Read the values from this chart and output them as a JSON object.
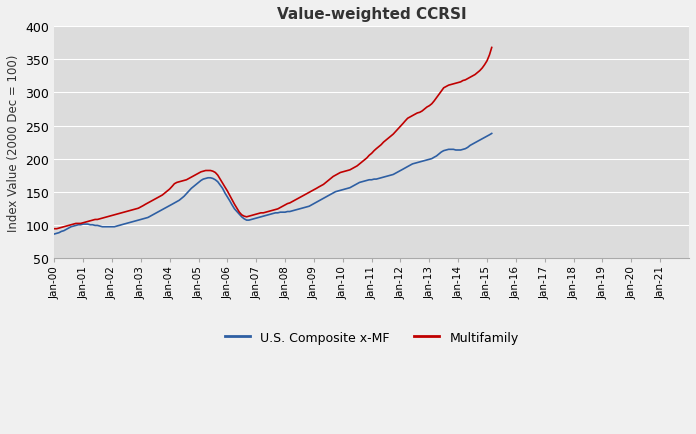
{
  "title": "Value-weighted CCRSI",
  "ylabel": "Index Value (2000 Dec = 100)",
  "ylim": [
    50,
    400
  ],
  "yticks": [
    50,
    100,
    150,
    200,
    250,
    300,
    350,
    400
  ],
  "line_color_composite": "#2E5FA3",
  "line_color_mf": "#C00000",
  "legend_composite": "U.S. Composite x-MF",
  "legend_mf": "Multifamily",
  "plot_bg_color": "#DCDCDC",
  "fig_bg_color": "#F0F0F0",
  "composite_values": [
    86,
    87,
    88,
    90,
    91,
    93,
    95,
    97,
    98,
    99,
    100,
    100,
    101,
    101,
    101,
    100,
    100,
    99,
    99,
    98,
    97,
    97,
    97,
    97,
    97,
    97,
    98,
    99,
    100,
    101,
    102,
    103,
    104,
    105,
    106,
    107,
    108,
    109,
    110,
    111,
    113,
    115,
    117,
    119,
    121,
    123,
    125,
    127,
    129,
    131,
    133,
    135,
    137,
    140,
    143,
    147,
    151,
    155,
    158,
    161,
    164,
    167,
    169,
    170,
    171,
    171,
    170,
    168,
    165,
    160,
    155,
    148,
    142,
    136,
    130,
    124,
    120,
    116,
    112,
    109,
    107,
    107,
    108,
    109,
    110,
    111,
    112,
    113,
    114,
    115,
    116,
    117,
    118,
    118,
    119,
    119,
    119,
    120,
    120,
    121,
    122,
    123,
    124,
    125,
    126,
    127,
    128,
    130,
    132,
    134,
    136,
    138,
    140,
    142,
    144,
    146,
    148,
    150,
    151,
    152,
    153,
    154,
    155,
    156,
    158,
    160,
    162,
    164,
    165,
    166,
    167,
    168,
    168,
    169,
    169,
    170,
    171,
    172,
    173,
    174,
    175,
    176,
    178,
    180,
    182,
    184,
    186,
    188,
    190,
    192,
    193,
    194,
    195,
    196,
    197,
    198,
    199,
    200,
    202,
    204,
    207,
    210,
    212,
    213,
    214,
    214,
    214,
    213,
    213,
    213,
    214,
    215,
    217,
    220,
    222,
    224,
    226,
    228,
    230,
    232,
    234,
    236,
    238
  ],
  "mf_values": [
    94,
    94,
    95,
    96,
    97,
    98,
    99,
    100,
    101,
    102,
    102,
    102,
    103,
    104,
    105,
    106,
    107,
    108,
    108,
    109,
    110,
    111,
    112,
    113,
    114,
    115,
    116,
    117,
    118,
    119,
    120,
    121,
    122,
    123,
    124,
    125,
    127,
    129,
    131,
    133,
    135,
    137,
    139,
    141,
    143,
    145,
    148,
    151,
    154,
    158,
    162,
    164,
    165,
    166,
    167,
    168,
    170,
    172,
    174,
    176,
    178,
    180,
    181,
    182,
    182,
    182,
    181,
    179,
    175,
    169,
    163,
    157,
    151,
    144,
    138,
    131,
    125,
    119,
    115,
    113,
    112,
    113,
    114,
    115,
    116,
    117,
    118,
    118,
    119,
    120,
    121,
    122,
    123,
    124,
    126,
    128,
    130,
    132,
    133,
    135,
    137,
    139,
    141,
    143,
    145,
    147,
    149,
    151,
    153,
    155,
    157,
    159,
    161,
    164,
    167,
    170,
    173,
    175,
    177,
    179,
    180,
    181,
    182,
    183,
    185,
    187,
    189,
    192,
    195,
    198,
    201,
    205,
    208,
    212,
    215,
    218,
    221,
    225,
    228,
    231,
    234,
    237,
    241,
    245,
    249,
    253,
    257,
    261,
    263,
    265,
    267,
    269,
    270,
    272,
    275,
    278,
    280,
    283,
    287,
    292,
    297,
    302,
    307,
    309,
    311,
    312,
    313,
    314,
    315,
    316,
    318,
    319,
    321,
    323,
    325,
    327,
    330,
    333,
    337,
    342,
    348,
    357,
    368
  ]
}
